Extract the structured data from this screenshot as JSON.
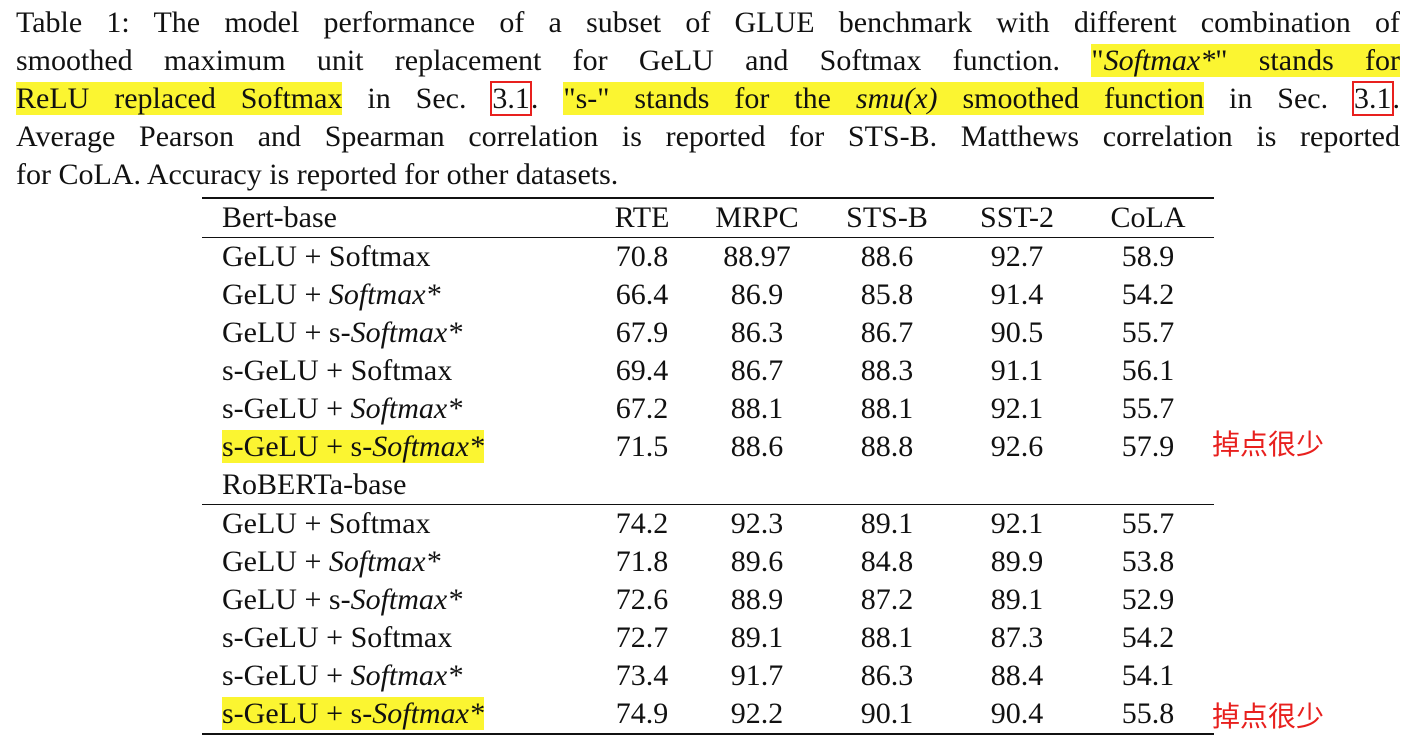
{
  "caption": {
    "line1": "Table 1: The model performance of a subset of GLUE benchmark with different combination of",
    "line2_a": "smoothed maximum unit replacement for GeLU and Softmax function.",
    "line2_hl_quote_open": "\"",
    "line2_hl_math": "Softmax*",
    "line2_hl_rest": "\" stands for",
    "line3_hl_a": "ReLU replaced Softmax",
    "line3_in_sec": " in Sec. ",
    "line3_ref1": "3.1",
    "line3_dot": ". ",
    "line3_hl_b_1": "\"s-\" stands for the ",
    "line3_hl_b_math": "smu(x)",
    "line3_hl_b_2": " smoothed function",
    "line3_in_sec2": " in Sec. ",
    "line3_ref2": "3.1",
    "line3_end": ".",
    "line4": "Average Pearson and Spearman correlation is reported for STS-B. Matthews correlation is reported",
    "line5": "for CoLA. Accuracy is reported for other datasets."
  },
  "table": {
    "header": [
      "Bert-base",
      "RTE",
      "MRPC",
      "STS-B",
      "SST-2",
      "CoLA"
    ],
    "bert_rows": [
      {
        "prefix": "GeLU + ",
        "math": "",
        "label": "Softmax",
        "values": [
          "70.8",
          "88.97",
          "88.6",
          "92.7",
          "58.9"
        ]
      },
      {
        "prefix": "GeLU + ",
        "math": "Softmax*",
        "label": "",
        "values": [
          "66.4",
          "86.9",
          "85.8",
          "91.4",
          "54.2"
        ]
      },
      {
        "prefix": "GeLU + s-",
        "math": "Softmax*",
        "label": "",
        "values": [
          "67.9",
          "86.3",
          "86.7",
          "90.5",
          "55.7"
        ]
      },
      {
        "prefix": "s-GeLU + ",
        "math": "",
        "label": "Softmax",
        "values": [
          "69.4",
          "86.7",
          "88.3",
          "91.1",
          "56.1"
        ]
      },
      {
        "prefix": "s-GeLU + ",
        "math": "Softmax*",
        "label": "",
        "values": [
          "67.2",
          "88.1",
          "88.1",
          "92.1",
          "55.7"
        ]
      },
      {
        "prefix": "s-GeLU + s-",
        "math": "Softmax*",
        "label": "",
        "values": [
          "71.5",
          "88.6",
          "88.8",
          "92.6",
          "57.9"
        ]
      }
    ],
    "roberta_title": "RoBERTa-base",
    "roberta_rows": [
      {
        "prefix": "GeLU + ",
        "math": "",
        "label": "Softmax",
        "values": [
          "74.2",
          "92.3",
          "89.1",
          "92.1",
          "55.7"
        ]
      },
      {
        "prefix": "GeLU + ",
        "math": "Softmax*",
        "label": "",
        "values": [
          "71.8",
          "89.6",
          "84.8",
          "89.9",
          "53.8"
        ]
      },
      {
        "prefix": "GeLU + s-",
        "math": "Softmax*",
        "label": "",
        "values": [
          "72.6",
          "88.9",
          "87.2",
          "89.1",
          "52.9"
        ]
      },
      {
        "prefix": "s-GeLU + ",
        "math": "",
        "label": "Softmax",
        "values": [
          "72.7",
          "89.1",
          "88.1",
          "87.3",
          "54.2"
        ]
      },
      {
        "prefix": "s-GeLU + ",
        "math": "Softmax*",
        "label": "",
        "values": [
          "73.4",
          "91.7",
          "86.3",
          "88.4",
          "54.1"
        ]
      },
      {
        "prefix": "s-GeLU + s-",
        "math": "Softmax*",
        "label": "",
        "values": [
          "74.9",
          "92.2",
          "90.1",
          "90.4",
          "55.8"
        ]
      }
    ]
  },
  "annotations": {
    "note_bert": "掉点很少",
    "note_roberta": "掉点很少"
  },
  "colors": {
    "highlight": "#fbf531",
    "annotation_red": "#e8201e"
  }
}
